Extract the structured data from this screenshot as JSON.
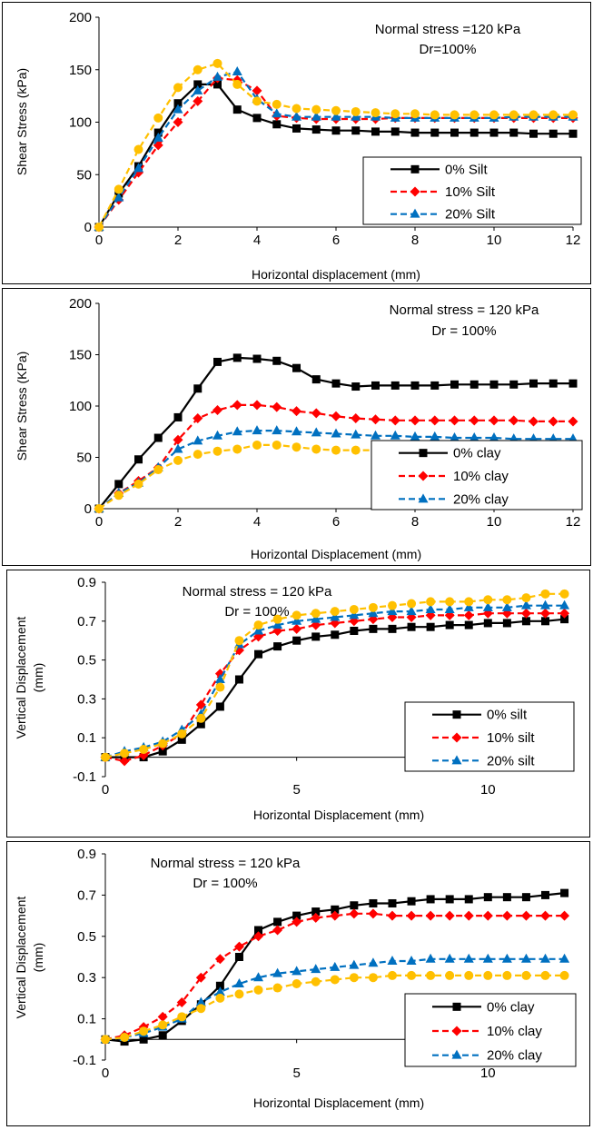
{
  "colors": {
    "black": "#000000",
    "red": "#ff0000",
    "blue": "#0070c0",
    "yellow": "#ffc000"
  },
  "chart_data": [
    {
      "type": "line",
      "title": "",
      "annotation": [
        "Normal stress =120 kPa",
        "Dr=100%"
      ],
      "xlabel": "Horizontal displacement (mm)",
      "ylabel": "Shear Stress (kPa)",
      "xlim": [
        0,
        12
      ],
      "ylim": [
        0,
        200
      ],
      "xticks": [
        "0",
        "2",
        "4",
        "6",
        "8",
        "10",
        "12"
      ],
      "yticks": [
        "0",
        "50",
        "100",
        "150",
        "200"
      ],
      "grid": false,
      "legend_position": "bottom-right",
      "series": [
        {
          "name": "0% Silt",
          "color": "#000000",
          "marker": "square",
          "dash": "solid",
          "x": [
            0,
            0.5,
            1,
            1.5,
            2,
            2.5,
            3,
            3.5,
            4,
            4.5,
            5,
            5.5,
            6,
            6.5,
            7,
            7.5,
            8,
            8.5,
            9,
            9.5,
            10,
            10.5,
            11,
            11.5,
            12
          ],
          "y": [
            0,
            32,
            58,
            90,
            118,
            136,
            136,
            112,
            104,
            98,
            94,
            93,
            92,
            92,
            91,
            91,
            90,
            90,
            90,
            90,
            90,
            90,
            89,
            89,
            89
          ]
        },
        {
          "name": "10% Silt",
          "color": "#ff0000",
          "marker": "diamond",
          "dash": "dashed",
          "x": [
            0,
            0.5,
            1,
            1.5,
            2,
            2.5,
            3,
            3.5,
            4,
            4.5,
            5,
            5.5,
            6,
            6.5,
            7,
            7.5,
            8,
            8.5,
            9,
            9.5,
            10,
            10.5,
            11,
            11.5,
            12
          ],
          "y": [
            0,
            26,
            52,
            78,
            100,
            120,
            142,
            140,
            130,
            106,
            104,
            103,
            103,
            103,
            103,
            104,
            104,
            104,
            104,
            104,
            104,
            104,
            104,
            104,
            104
          ]
        },
        {
          "name": "20% Silt",
          "color": "#0070c0",
          "marker": "triangle",
          "dash": "dashed",
          "x": [
            0,
            0.5,
            1,
            1.5,
            2,
            2.5,
            3,
            3.5,
            4,
            4.5,
            5,
            5.5,
            6,
            6.5,
            7,
            7.5,
            8,
            8.5,
            9,
            9.5,
            10,
            10.5,
            11,
            11.5,
            12
          ],
          "y": [
            0,
            28,
            56,
            85,
            112,
            130,
            143,
            148,
            122,
            108,
            105,
            105,
            105,
            105,
            105,
            104,
            104,
            104,
            104,
            104,
            104,
            105,
            105,
            105,
            105
          ]
        },
        {
          "name": "",
          "color": "#ffc000",
          "marker": "circle",
          "dash": "dashed",
          "x": [
            0,
            0.5,
            1,
            1.5,
            2,
            2.5,
            3,
            3.5,
            4,
            4.5,
            5,
            5.5,
            6,
            6.5,
            7,
            7.5,
            8,
            8.5,
            9,
            9.5,
            10,
            10.5,
            11,
            11.5,
            12
          ],
          "y": [
            0,
            36,
            74,
            104,
            133,
            150,
            156,
            136,
            120,
            117,
            113,
            112,
            111,
            110,
            109,
            108,
            108,
            107,
            107,
            107,
            107,
            107,
            107,
            107,
            107
          ]
        }
      ]
    },
    {
      "type": "line",
      "title": "",
      "annotation": [
        "Normal stress = 120 kPa",
        "Dr  = 100%"
      ],
      "xlabel": "Horizontal Displacement (mm)",
      "ylabel": "Shear Stress (KPa)",
      "xlim": [
        0,
        12
      ],
      "ylim": [
        0,
        200
      ],
      "xticks": [
        "0",
        "2",
        "4",
        "6",
        "8",
        "10",
        "12"
      ],
      "yticks": [
        "0",
        "50",
        "100",
        "150",
        "200"
      ],
      "grid": false,
      "legend_position": "bottom-right",
      "series": [
        {
          "name": "0% clay",
          "color": "#000000",
          "marker": "square",
          "dash": "solid",
          "x": [
            0,
            0.5,
            1,
            1.5,
            2,
            2.5,
            3,
            3.5,
            4,
            4.5,
            5,
            5.5,
            6,
            6.5,
            7,
            7.5,
            8,
            8.5,
            9,
            9.5,
            10,
            10.5,
            11,
            11.5,
            12
          ],
          "y": [
            0,
            24,
            48,
            69,
            89,
            117,
            143,
            147,
            146,
            144,
            137,
            126,
            122,
            119,
            120,
            120,
            120,
            120,
            121,
            121,
            121,
            121,
            122,
            122,
            122
          ]
        },
        {
          "name": "10% clay",
          "color": "#ff0000",
          "marker": "diamond",
          "dash": "dashed",
          "x": [
            0,
            0.5,
            1,
            1.5,
            2,
            2.5,
            3,
            3.5,
            4,
            4.5,
            5,
            5.5,
            6,
            6.5,
            7,
            7.5,
            8,
            8.5,
            9,
            9.5,
            10,
            10.5,
            11,
            11.5,
            12
          ],
          "y": [
            0,
            15,
            27,
            40,
            67,
            88,
            96,
            101,
            101,
            99,
            95,
            93,
            90,
            88,
            87,
            86,
            86,
            86,
            86,
            86,
            86,
            86,
            85,
            85,
            85
          ]
        },
        {
          "name": "20% clay",
          "color": "#0070c0",
          "marker": "triangle",
          "dash": "dashed",
          "x": [
            0,
            0.5,
            1,
            1.5,
            2,
            2.5,
            3,
            3.5,
            4,
            4.5,
            5,
            5.5,
            6,
            6.5,
            7,
            7.5,
            8,
            8.5,
            9,
            9.5,
            10,
            10.5,
            11,
            11.5,
            12
          ],
          "y": [
            0,
            15,
            25,
            40,
            58,
            66,
            71,
            75,
            76,
            76,
            75,
            74,
            73,
            72,
            71,
            71,
            70,
            70,
            69,
            69,
            69,
            68,
            68,
            68,
            68
          ]
        },
        {
          "name": "",
          "color": "#ffc000",
          "marker": "circle",
          "dash": "dashed",
          "x": [
            0,
            0.5,
            1,
            1.5,
            2,
            2.5,
            3,
            3.5,
            4,
            4.5,
            5,
            5.5,
            6,
            6.5,
            7,
            7.5,
            8,
            8.5,
            9,
            9.5,
            10,
            10.5,
            11,
            11.5,
            12
          ],
          "y": [
            0,
            13,
            24,
            38,
            47,
            53,
            56,
            58,
            62,
            62,
            60,
            58,
            57,
            57,
            57,
            57,
            57,
            57,
            57,
            57,
            57,
            57,
            57,
            57,
            57
          ]
        }
      ]
    },
    {
      "type": "line",
      "title": "",
      "annotation": [
        "Normal stress = 120 kPa",
        "Dr  = 100%"
      ],
      "xlabel": "Horizontal Displacement (mm)",
      "ylabel": "Vertical Displacement (mm)",
      "xlim": [
        0,
        12.2
      ],
      "ylim": [
        -0.1,
        0.9
      ],
      "xticks": [
        "0",
        "5",
        "10"
      ],
      "yticks": [
        "-0.1",
        "0.1",
        "0.3",
        "0.5",
        "0.7",
        "0.9"
      ],
      "grid": false,
      "legend_position": "bottom-right",
      "series": [
        {
          "name": "0% silt",
          "color": "#000000",
          "marker": "square",
          "dash": "solid",
          "x": [
            0,
            0.5,
            1,
            1.5,
            2,
            2.5,
            3,
            3.5,
            4,
            4.5,
            5,
            5.5,
            6,
            6.5,
            7,
            7.5,
            8,
            8.5,
            9,
            9.5,
            10,
            10.5,
            11,
            11.5,
            12
          ],
          "y": [
            0,
            0,
            0,
            0.03,
            0.09,
            0.17,
            0.26,
            0.4,
            0.53,
            0.57,
            0.6,
            0.62,
            0.63,
            0.65,
            0.66,
            0.66,
            0.67,
            0.67,
            0.68,
            0.68,
            0.69,
            0.69,
            0.7,
            0.7,
            0.71
          ]
        },
        {
          "name": "10% silt",
          "color": "#ff0000",
          "marker": "diamond",
          "dash": "dashed",
          "x": [
            0,
            0.5,
            1,
            1.5,
            2,
            2.5,
            3,
            3.5,
            4,
            4.5,
            5,
            5.5,
            6,
            6.5,
            7,
            7.5,
            8,
            8.5,
            9,
            9.5,
            10,
            10.5,
            11,
            11.5,
            12
          ],
          "y": [
            0,
            -0.02,
            0.01,
            0.06,
            0.12,
            0.27,
            0.43,
            0.55,
            0.62,
            0.65,
            0.66,
            0.68,
            0.69,
            0.7,
            0.71,
            0.72,
            0.72,
            0.73,
            0.73,
            0.73,
            0.74,
            0.74,
            0.74,
            0.74,
            0.74
          ]
        },
        {
          "name": "20% silt",
          "color": "#0070c0",
          "marker": "triangle",
          "dash": "dashed",
          "x": [
            0,
            0.5,
            1,
            1.5,
            2,
            2.5,
            3,
            3.5,
            4,
            4.5,
            5,
            5.5,
            6,
            6.5,
            7,
            7.5,
            8,
            8.5,
            9,
            9.5,
            10,
            10.5,
            11,
            11.5,
            12
          ],
          "y": [
            0,
            0.03,
            0.05,
            0.08,
            0.14,
            0.22,
            0.4,
            0.58,
            0.65,
            0.68,
            0.7,
            0.71,
            0.72,
            0.73,
            0.74,
            0.75,
            0.75,
            0.76,
            0.76,
            0.77,
            0.77,
            0.77,
            0.78,
            0.78,
            0.78
          ]
        },
        {
          "name": "",
          "color": "#ffc000",
          "marker": "circle",
          "dash": "dashed",
          "x": [
            0,
            0.5,
            1,
            1.5,
            2,
            2.5,
            3,
            3.5,
            4,
            4.5,
            5,
            5.5,
            6,
            6.5,
            7,
            7.5,
            8,
            8.5,
            9,
            9.5,
            10,
            10.5,
            11,
            11.5,
            12
          ],
          "y": [
            0,
            0.02,
            0.04,
            0.07,
            0.12,
            0.2,
            0.36,
            0.6,
            0.68,
            0.71,
            0.73,
            0.74,
            0.75,
            0.76,
            0.77,
            0.78,
            0.79,
            0.8,
            0.8,
            0.8,
            0.81,
            0.81,
            0.82,
            0.84,
            0.84
          ]
        }
      ]
    },
    {
      "type": "line",
      "title": "",
      "annotation": [
        "Normal stress = 120 kPa",
        "Dr  = 100%"
      ],
      "xlabel": "Horizontal Displacement (mm)",
      "ylabel": "Vertical Displacement (mm)",
      "xlim": [
        0,
        12.2
      ],
      "ylim": [
        -0.1,
        0.9
      ],
      "xticks": [
        "0",
        "5",
        "10"
      ],
      "yticks": [
        "-0.1",
        "0.1",
        "0.3",
        "0.5",
        "0.7",
        "0.9"
      ],
      "grid": false,
      "legend_position": "bottom-right",
      "series": [
        {
          "name": "0% clay",
          "color": "#000000",
          "marker": "square",
          "dash": "solid",
          "x": [
            0,
            0.5,
            1,
            1.5,
            2,
            2.5,
            3,
            3.5,
            4,
            4.5,
            5,
            5.5,
            6,
            6.5,
            7,
            7.5,
            8,
            8.5,
            9,
            9.5,
            10,
            10.5,
            11,
            11.5,
            12
          ],
          "y": [
            0,
            -0.01,
            0,
            0.02,
            0.09,
            0.17,
            0.26,
            0.4,
            0.53,
            0.57,
            0.6,
            0.62,
            0.63,
            0.65,
            0.66,
            0.66,
            0.67,
            0.68,
            0.68,
            0.68,
            0.69,
            0.69,
            0.69,
            0.7,
            0.71
          ]
        },
        {
          "name": "10% clay",
          "color": "#ff0000",
          "marker": "diamond",
          "dash": "dashed",
          "x": [
            0,
            0.5,
            1,
            1.5,
            2,
            2.5,
            3,
            3.5,
            4,
            4.5,
            5,
            5.5,
            6,
            6.5,
            7,
            7.5,
            8,
            8.5,
            9,
            9.5,
            10,
            10.5,
            11,
            11.5,
            12
          ],
          "y": [
            0,
            0.02,
            0.06,
            0.11,
            0.18,
            0.3,
            0.39,
            0.45,
            0.5,
            0.53,
            0.57,
            0.59,
            0.6,
            0.61,
            0.61,
            0.6,
            0.6,
            0.6,
            0.6,
            0.6,
            0.6,
            0.6,
            0.6,
            0.6,
            0.6
          ]
        },
        {
          "name": "20% clay",
          "color": "#0070c0",
          "marker": "triangle",
          "dash": "dashed",
          "x": [
            0,
            0.5,
            1,
            1.5,
            2,
            2.5,
            3,
            3.5,
            4,
            4.5,
            5,
            5.5,
            6,
            6.5,
            7,
            7.5,
            8,
            8.5,
            9,
            9.5,
            10,
            10.5,
            11,
            11.5,
            12
          ],
          "y": [
            0,
            0.01,
            0.03,
            0.06,
            0.1,
            0.18,
            0.23,
            0.27,
            0.3,
            0.32,
            0.33,
            0.34,
            0.35,
            0.36,
            0.37,
            0.38,
            0.38,
            0.39,
            0.39,
            0.39,
            0.39,
            0.39,
            0.39,
            0.39,
            0.39
          ]
        },
        {
          "name": "",
          "color": "#ffc000",
          "marker": "circle",
          "dash": "dashed",
          "x": [
            0,
            0.5,
            1,
            1.5,
            2,
            2.5,
            3,
            3.5,
            4,
            4.5,
            5,
            5.5,
            6,
            6.5,
            7,
            7.5,
            8,
            8.5,
            9,
            9.5,
            10,
            10.5,
            11,
            11.5,
            12
          ],
          "y": [
            0,
            0.01,
            0.04,
            0.07,
            0.11,
            0.15,
            0.2,
            0.22,
            0.24,
            0.25,
            0.27,
            0.28,
            0.29,
            0.3,
            0.3,
            0.31,
            0.31,
            0.31,
            0.31,
            0.31,
            0.31,
            0.31,
            0.31,
            0.31,
            0.31
          ]
        }
      ]
    }
  ]
}
